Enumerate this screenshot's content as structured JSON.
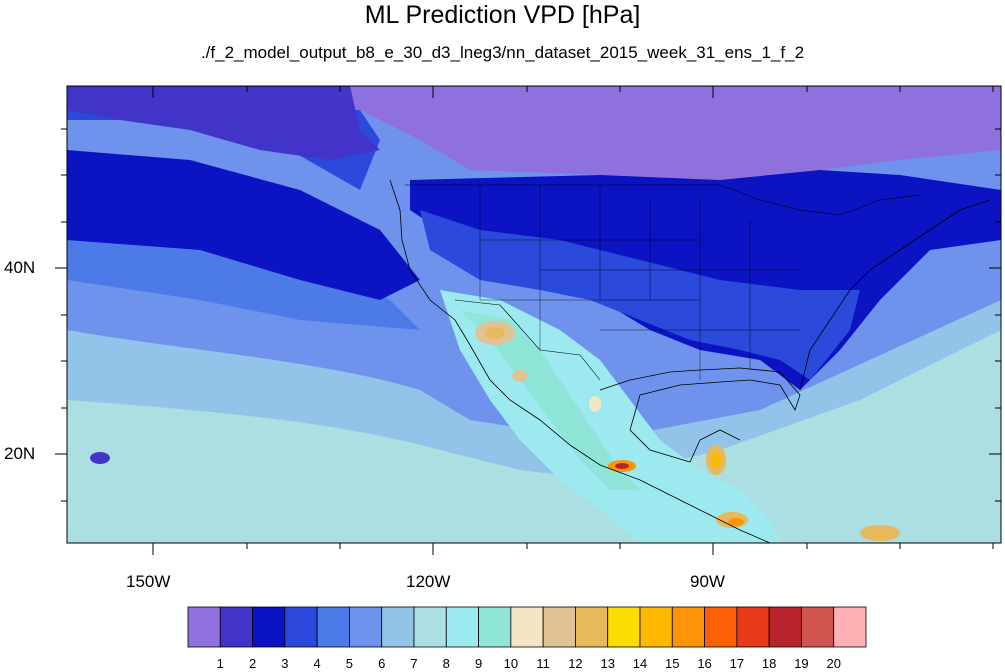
{
  "title": "ML Prediction VPD [hPa]",
  "subtitle": "./f_2_model_output_b8_e_30_d3_lneg3/nn_dataset_2015_week_31_ens_1_f_2",
  "axes": {
    "lat_labels": [
      "40N",
      "20N"
    ],
    "lon_labels": [
      "150W",
      "120W",
      "90W"
    ]
  },
  "colorbar": {
    "colors": [
      "#8e71dc",
      "#4233c9",
      "#0b13c2",
      "#2b49db",
      "#4c7ae6",
      "#6f93ec",
      "#92c4ea",
      "#acdfe1",
      "#9ce9f0",
      "#8fe6d8",
      "#f2e6c4",
      "#e0c394",
      "#e8b95b",
      "#fcdd02",
      "#fdba00",
      "#fd9308",
      "#fd6106",
      "#e73a18",
      "#b7242b",
      "#d15551",
      "#fcb2b4"
    ],
    "labels": [
      "1",
      "2",
      "3",
      "4",
      "5",
      "6",
      "7",
      "8",
      "9",
      "10",
      "11",
      "12",
      "13",
      "14",
      "15",
      "16",
      "17",
      "18",
      "19",
      "20"
    ]
  },
  "map": {
    "background": "#6f93ec",
    "border_color": "#000000"
  }
}
